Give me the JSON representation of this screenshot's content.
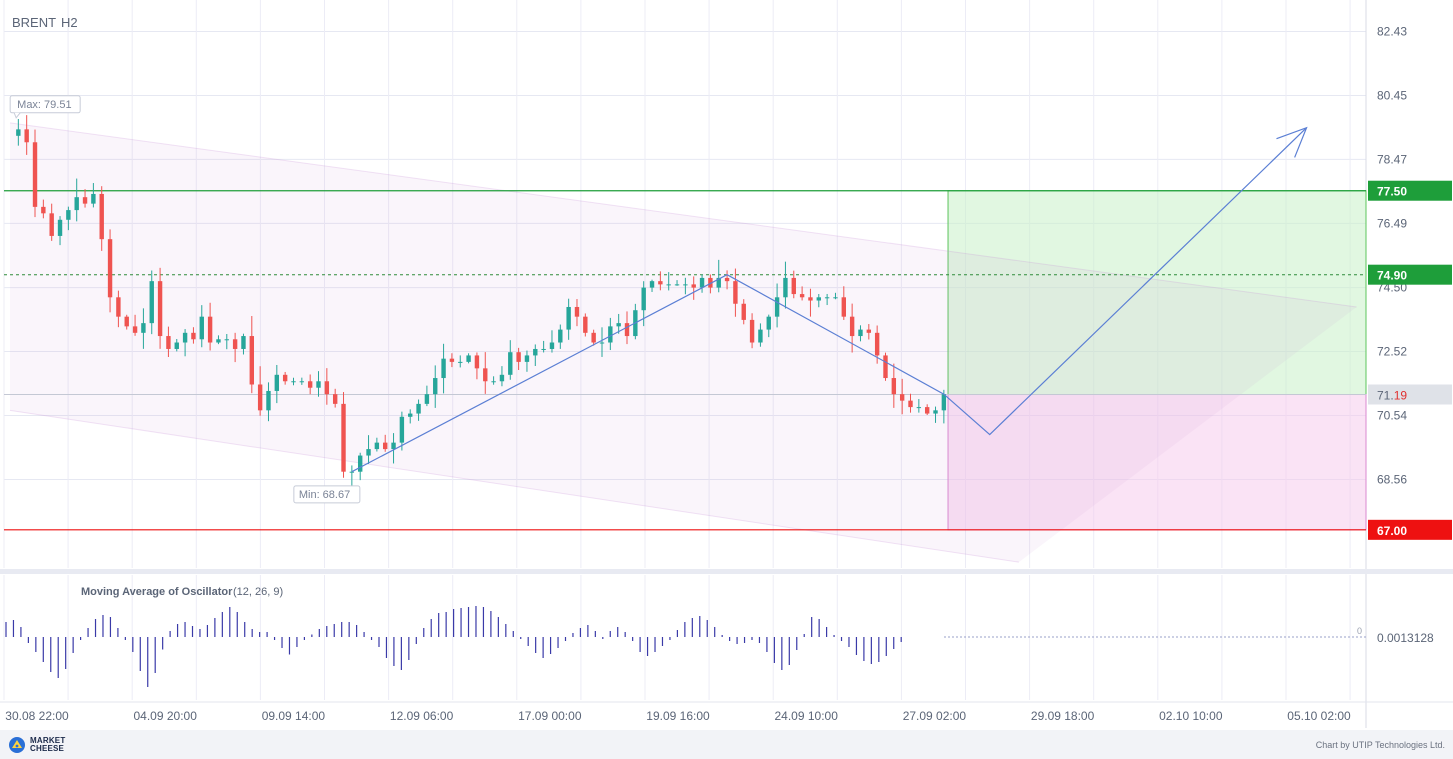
{
  "header": {
    "symbol": "BRENT",
    "timeframe": "H2"
  },
  "colors": {
    "bull": "#26a69a",
    "bear": "#ef5350",
    "target_green": "#1e9e3a",
    "stop_red": "#ee1111",
    "entry_grey": "#dfe2e8",
    "channel": "#c890d8",
    "forecast_line": "#5b7fd4",
    "oscillator": "#3a3aa8"
  },
  "chart_data": {
    "type": "candlestick",
    "instrument": "BRENT",
    "timeframe": "H2",
    "y_axis": {
      "ticks": [
        82.43,
        80.45,
        78.47,
        76.49,
        74.5,
        72.52,
        70.54,
        68.56
      ],
      "tick_labels": [
        "82.43",
        "80.45",
        "78.47",
        "76.49",
        "74.50",
        "72.52",
        "70.54",
        "68.56"
      ],
      "range": [
        65.9,
        83.3
      ]
    },
    "x_axis": {
      "tick_labels": [
        "30.08 22:00",
        "04.09 20:00",
        "09.09 14:00",
        "12.09 06:00",
        "17.09 00:00",
        "19.09 16:00",
        "24.09 10:00",
        "27.09 02:00",
        "29.09 18:00",
        "02.10 10:00",
        "05.10 02:00"
      ]
    },
    "price_levels": [
      {
        "label": "77.50",
        "value": 77.5,
        "role": "take-profit"
      },
      {
        "label": "74.90",
        "value": 74.9,
        "role": "dotted reference"
      },
      {
        "label_main": "71.",
        "label_tail": "19",
        "value": 71.19,
        "role": "current price"
      },
      {
        "label": "67.00",
        "value": 67.0,
        "role": "stop-loss"
      }
    ],
    "annotations": {
      "max_label": "Max: 79.51",
      "max_value": 79.51,
      "min_label": "Min: 68.67",
      "min_value": 68.67
    },
    "price_path": [
      [
        0,
        79.2
      ],
      [
        1,
        79.4
      ],
      [
        2,
        79.0
      ],
      [
        3,
        77.0
      ],
      [
        4,
        76.8
      ],
      [
        5,
        76.1
      ],
      [
        6,
        76.6
      ],
      [
        7,
        76.9
      ],
      [
        8,
        77.3
      ],
      [
        9,
        77.1
      ],
      [
        10,
        77.4
      ],
      [
        11,
        76.0
      ],
      [
        12,
        74.2
      ],
      [
        13,
        73.6
      ],
      [
        14,
        73.3
      ],
      [
        15,
        73.1
      ],
      [
        16,
        73.4
      ],
      [
        17,
        74.7
      ],
      [
        18,
        73.0
      ],
      [
        19,
        72.6
      ],
      [
        20,
        72.8
      ],
      [
        21,
        73.1
      ],
      [
        22,
        72.9
      ],
      [
        23,
        73.6
      ],
      [
        24,
        72.8
      ],
      [
        25,
        72.9
      ],
      [
        26,
        72.9
      ],
      [
        27,
        72.6
      ],
      [
        28,
        73.0
      ],
      [
        29,
        71.5
      ],
      [
        30,
        70.7
      ],
      [
        31,
        71.3
      ],
      [
        32,
        71.8
      ],
      [
        33,
        71.6
      ],
      [
        34,
        71.6
      ],
      [
        35,
        71.6
      ],
      [
        36,
        71.4
      ],
      [
        37,
        71.6
      ],
      [
        38,
        71.2
      ],
      [
        39,
        70.9
      ],
      [
        40,
        68.8
      ],
      [
        41,
        68.8
      ],
      [
        42,
        69.3
      ],
      [
        43,
        69.5
      ],
      [
        44,
        69.7
      ],
      [
        45,
        69.5
      ],
      [
        46,
        69.7
      ],
      [
        47,
        70.5
      ],
      [
        48,
        70.6
      ],
      [
        49,
        70.9
      ],
      [
        50,
        71.2
      ],
      [
        51,
        71.7
      ],
      [
        52,
        72.3
      ],
      [
        53,
        72.2
      ],
      [
        54,
        72.2
      ],
      [
        55,
        72.4
      ],
      [
        56,
        72.0
      ],
      [
        57,
        71.6
      ],
      [
        58,
        71.6
      ],
      [
        59,
        71.8
      ],
      [
        60,
        72.5
      ],
      [
        61,
        72.2
      ],
      [
        62,
        72.4
      ],
      [
        63,
        72.6
      ],
      [
        64,
        72.6
      ],
      [
        65,
        72.8
      ],
      [
        66,
        73.2
      ],
      [
        67,
        73.9
      ],
      [
        68,
        73.6
      ],
      [
        69,
        73.1
      ],
      [
        70,
        72.8
      ],
      [
        71,
        72.8
      ],
      [
        72,
        73.3
      ],
      [
        73,
        73.4
      ],
      [
        74,
        73.0
      ],
      [
        75,
        73.8
      ],
      [
        76,
        74.5
      ],
      [
        77,
        74.7
      ],
      [
        78,
        74.6
      ],
      [
        79,
        74.6
      ],
      [
        80,
        74.6
      ],
      [
        81,
        74.6
      ],
      [
        82,
        74.5
      ],
      [
        83,
        74.8
      ],
      [
        84,
        74.5
      ],
      [
        85,
        74.8
      ],
      [
        86,
        74.7
      ],
      [
        87,
        74.0
      ],
      [
        88,
        73.5
      ],
      [
        89,
        72.8
      ],
      [
        90,
        73.2
      ],
      [
        91,
        73.6
      ],
      [
        92,
        74.2
      ],
      [
        93,
        74.8
      ],
      [
        94,
        74.3
      ],
      [
        95,
        74.2
      ],
      [
        96,
        74.1
      ],
      [
        97,
        74.2
      ],
      [
        98,
        74.2
      ],
      [
        99,
        74.2
      ],
      [
        100,
        73.6
      ],
      [
        101,
        73.0
      ],
      [
        102,
        73.2
      ],
      [
        103,
        73.1
      ],
      [
        104,
        72.4
      ],
      [
        105,
        71.7
      ],
      [
        106,
        71.2
      ],
      [
        107,
        71.0
      ],
      [
        108,
        70.8
      ],
      [
        109,
        70.8
      ],
      [
        110,
        70.6
      ],
      [
        111,
        70.7
      ],
      [
        112,
        71.2
      ]
    ],
    "trendline": [
      {
        "bar": 41,
        "price": 68.8
      },
      {
        "bar": 86,
        "price": 74.9
      },
      {
        "bar": 112,
        "price": 71.2
      },
      {
        "bar": 117.5,
        "price": 69.95
      },
      {
        "bar": 155.5,
        "price": 79.45
      }
    ],
    "channel": {
      "upper": [
        {
          "bar": 0,
          "price": 79.6
        },
        {
          "bar": 161.5,
          "price": 73.9
        }
      ],
      "lower": [
        {
          "bar": 0,
          "price": 70.7
        },
        {
          "bar": 121,
          "price": 66.0
        }
      ]
    },
    "target_zone": {
      "from_bar": 112.5,
      "top": 77.5,
      "bottom": 71.19
    },
    "stop_zone": {
      "from_bar": 112.5,
      "top": 71.19,
      "bottom": 67.0
    },
    "indicator": {
      "name": "Moving Average of Oscillator",
      "params": "(12, 26, 9)",
      "current_value_label": "0.0013128",
      "zero_label": "0",
      "histogram": [
        0.3,
        0.34,
        0.2,
        -0.12,
        -0.3,
        -0.5,
        -0.7,
        -0.82,
        -0.64,
        -0.32,
        -0.06,
        0.18,
        0.36,
        0.44,
        0.4,
        0.18,
        -0.06,
        -0.3,
        -0.68,
        -1.0,
        -0.72,
        -0.25,
        0.12,
        0.26,
        0.3,
        0.22,
        0.16,
        0.24,
        0.38,
        0.5,
        0.6,
        0.5,
        0.3,
        0.16,
        0.1,
        0.1,
        -0.06,
        -0.22,
        -0.35,
        -0.2,
        -0.06,
        0.05,
        0.16,
        0.22,
        0.26,
        0.3,
        0.3,
        0.24,
        0.1,
        -0.06,
        -0.2,
        -0.42,
        -0.58,
        -0.66,
        -0.46,
        -0.14,
        0.18,
        0.36,
        0.48,
        0.5,
        0.56,
        0.58,
        0.6,
        0.62,
        0.6,
        0.52,
        0.4,
        0.26,
        0.12,
        -0.04,
        -0.18,
        -0.32,
        -0.42,
        -0.34,
        -0.22,
        -0.08,
        0.08,
        0.18,
        0.24,
        0.12,
        -0.04,
        0.12,
        0.2,
        0.1,
        -0.08,
        -0.3,
        -0.38,
        -0.3,
        -0.18,
        -0.06,
        0.14,
        0.3,
        0.38,
        0.42,
        0.34,
        0.2,
        0.04,
        -0.08,
        -0.14,
        -0.12,
        -0.06,
        -0.12,
        -0.3,
        -0.52,
        -0.66,
        -0.56,
        -0.26,
        0.06,
        0.4,
        0.36,
        0.2,
        0.04,
        -0.08,
        -0.2,
        -0.36,
        -0.48,
        -0.54,
        -0.5,
        -0.38,
        -0.24,
        -0.1
      ]
    }
  },
  "footer": {
    "logo_line1": "MARKET",
    "logo_line2": "CHEESE",
    "credit": "Chart by UTIP Technologies Ltd."
  }
}
